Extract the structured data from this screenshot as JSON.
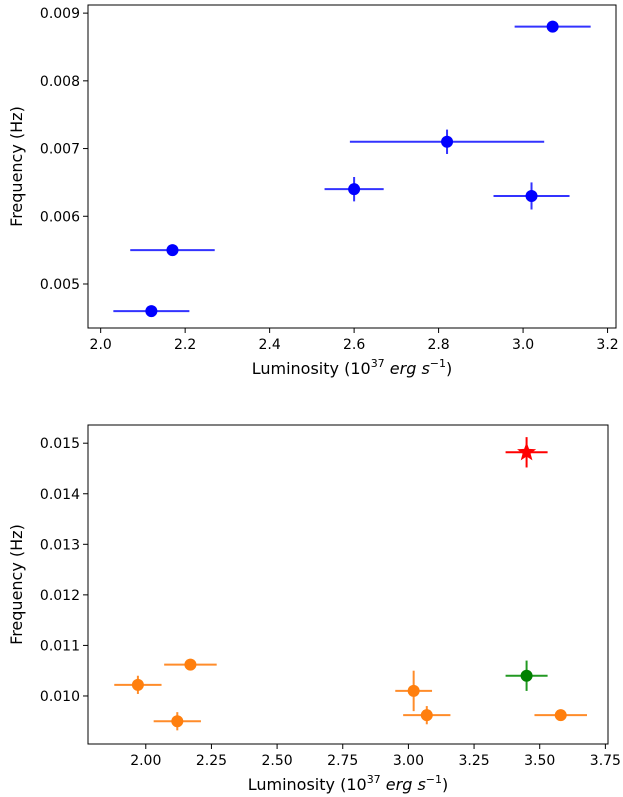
{
  "chart_data": [
    {
      "type": "scatter",
      "title": "",
      "xlabel": "Luminosity",
      "xlabel_unit": "37",
      "ylabel": "Frequency (Hz)",
      "xlim": [
        1.97,
        3.22
      ],
      "ylim": [
        0.00435,
        0.00912
      ],
      "xticks": [
        2.0,
        2.2,
        2.4,
        2.6,
        2.8,
        3.0,
        3.2
      ],
      "xtick_labels": [
        "2.0",
        "2.2",
        "2.4",
        "2.6",
        "2.8",
        "3.0",
        "3.2"
      ],
      "yticks": [
        0.005,
        0.006,
        0.007,
        0.008,
        0.009
      ],
      "ytick_labels": [
        "0.005",
        "0.006",
        "0.007",
        "0.008",
        "0.009"
      ],
      "grid": false,
      "series": [
        {
          "color": "#0000ff",
          "errbar_color": "#3333ff",
          "marker": "circle",
          "points": [
            {
              "x": 2.12,
              "y": 0.0046,
              "xerr": 0.09,
              "yerr": 5e-05
            },
            {
              "x": 2.17,
              "y": 0.0055,
              "xerr": 0.1,
              "yerr": 8e-05
            },
            {
              "x": 2.6,
              "y": 0.0064,
              "xerr": 0.07,
              "yerr": 0.00018
            },
            {
              "x": 2.82,
              "y": 0.0071,
              "xerr": 0.23,
              "yerr": 0.00018
            },
            {
              "x": 3.02,
              "y": 0.0063,
              "xerr": 0.09,
              "yerr": 0.0002
            },
            {
              "x": 3.07,
              "y": 0.0088,
              "xerr": 0.09,
              "yerr": 5e-05
            }
          ]
        }
      ]
    },
    {
      "type": "scatter",
      "title": "",
      "xlabel": "Luminosity",
      "xlabel_unit": "37",
      "ylabel": "Frequency (Hz)",
      "xlim": [
        1.78,
        3.76
      ],
      "ylim": [
        0.00905,
        0.01536
      ],
      "xticks": [
        2.0,
        2.25,
        2.5,
        2.75,
        3.0,
        3.25,
        3.5,
        3.75
      ],
      "xtick_labels": [
        "2.00",
        "2.25",
        "2.50",
        "2.75",
        "3.00",
        "3.25",
        "3.50",
        "3.75"
      ],
      "yticks": [
        0.01,
        0.011,
        0.012,
        0.013,
        0.014,
        0.015
      ],
      "ytick_labels": [
        "0.010",
        "0.011",
        "0.012",
        "0.013",
        "0.014",
        "0.015"
      ],
      "grid": false,
      "series": [
        {
          "color": "#ff7f0e",
          "errbar_color": "#ff8c2a",
          "marker": "circle",
          "points": [
            {
              "x": 1.97,
              "y": 0.01022,
              "xerr": 0.09,
              "yerr": 0.00018
            },
            {
              "x": 2.12,
              "y": 0.0095,
              "xerr": 0.09,
              "yerr": 0.00018
            },
            {
              "x": 2.17,
              "y": 0.01062,
              "xerr": 0.1,
              "yerr": 5e-05
            },
            {
              "x": 3.02,
              "y": 0.0101,
              "xerr": 0.07,
              "yerr": 0.0004
            },
            {
              "x": 3.07,
              "y": 0.00962,
              "xerr": 0.09,
              "yerr": 0.00018
            },
            {
              "x": 3.58,
              "y": 0.00962,
              "xerr": 0.1,
              "yerr": 5e-05
            }
          ]
        },
        {
          "color": "#008000",
          "errbar_color": "#229922",
          "marker": "circle",
          "points": [
            {
              "x": 3.45,
              "y": 0.0104,
              "xerr": 0.08,
              "yerr": 0.0003
            }
          ]
        },
        {
          "color": "#ff0000",
          "errbar_color": "#ff0000",
          "marker": "star",
          "points": [
            {
              "x": 3.45,
              "y": 0.01482,
              "xerr": 0.08,
              "yerr": 0.0003
            }
          ]
        }
      ]
    }
  ]
}
